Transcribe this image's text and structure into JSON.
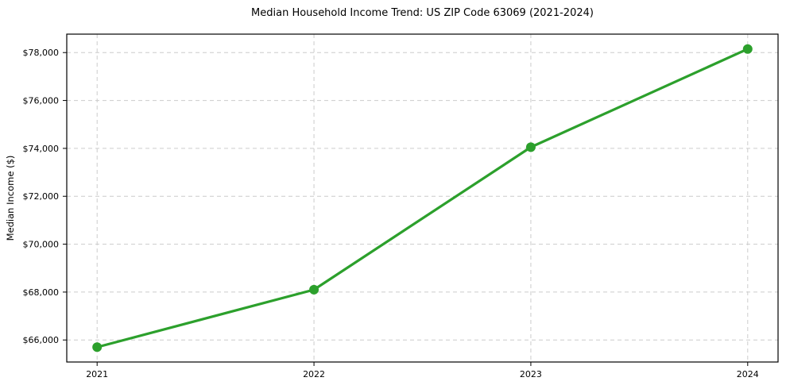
{
  "chart_data": {
    "type": "line",
    "title": "Median Household Income Trend: US ZIP Code 63069 (2021-2024)",
    "xlabel": "",
    "ylabel": "Median Income ($)",
    "x": [
      2021,
      2022,
      2023,
      2024
    ],
    "values": [
      65700,
      68100,
      74050,
      78150
    ],
    "x_tick_labels": [
      "2021",
      "2022",
      "2023",
      "2024"
    ],
    "y_tick_values": [
      66000,
      68000,
      70000,
      72000,
      74000,
      76000,
      78000
    ],
    "y_tick_labels": [
      "$66,000",
      "$68,000",
      "$70,000",
      "$72,000",
      "$74,000",
      "$76,000",
      "$78,000"
    ],
    "xlim": [
      2020.86,
      2024.14
    ],
    "ylim": [
      65080,
      78770
    ],
    "grid": true,
    "grid_style": "dashed",
    "legend": "none",
    "line_color": "#2ca02c",
    "marker": "circle",
    "marker_color": "#2ca02c",
    "grid_color": "#cccccc",
    "axis_color": "#000000",
    "background": "#ffffff"
  }
}
